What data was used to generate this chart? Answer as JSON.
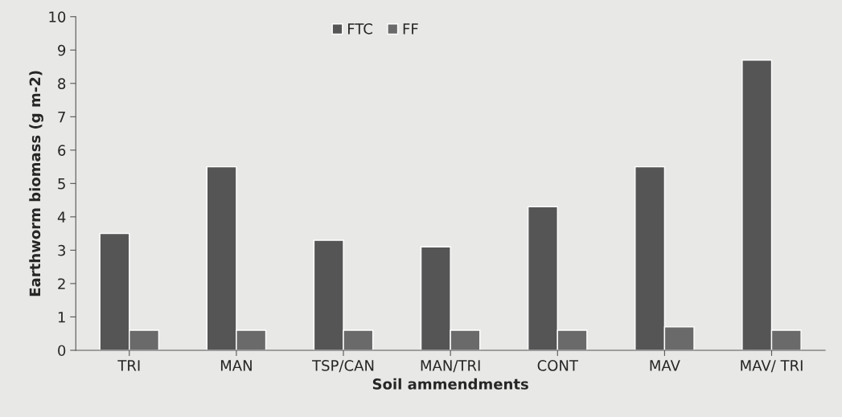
{
  "chart_data": {
    "type": "bar",
    "categories": [
      "TRI",
      "MAN",
      "TSP/CAN",
      "MAN/TRI",
      "CONT",
      "MAV",
      "MAV/ TRI"
    ],
    "series": [
      {
        "name": "FTC",
        "color": "#555555",
        "values": [
          3.5,
          5.5,
          3.3,
          3.1,
          4.3,
          5.5,
          8.7
        ]
      },
      {
        "name": "FF",
        "color": "#6a6a6a",
        "values": [
          0.6,
          0.6,
          0.6,
          0.6,
          0.6,
          0.7,
          0.6
        ]
      }
    ],
    "xlabel": "Soil ammendments",
    "ylabel": "Earthworm biomass (g m-2)",
    "ylim": [
      0,
      10
    ],
    "yticks": [
      0,
      1,
      2,
      3,
      4,
      5,
      6,
      7,
      8,
      9,
      10
    ],
    "grid": false,
    "legend": "top"
  }
}
